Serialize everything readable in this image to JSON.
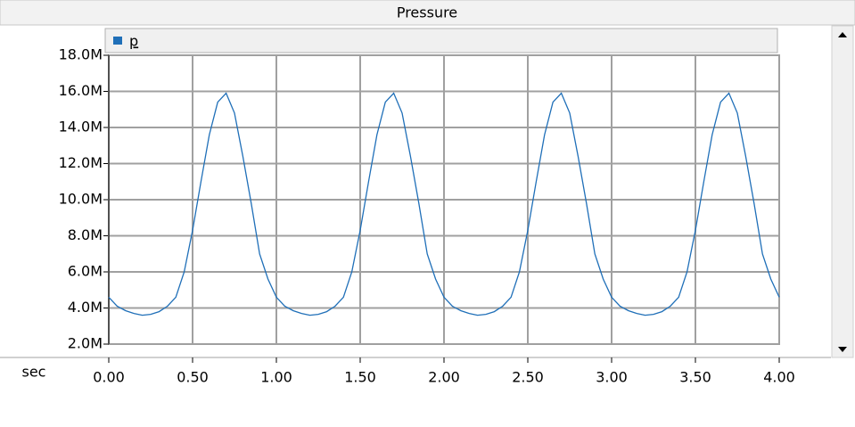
{
  "chart_data": {
    "type": "line",
    "title": "Pressure",
    "x_label": "sec",
    "x": [
      0,
      0.05,
      0.1,
      0.15,
      0.2,
      0.25,
      0.3,
      0.35,
      0.4,
      0.45,
      0.5,
      0.55,
      0.6,
      0.65,
      0.7,
      0.75,
      0.8,
      0.85,
      0.9,
      0.95,
      1,
      1.05,
      1.1,
      1.15,
      1.2,
      1.25,
      1.3,
      1.35,
      1.4,
      1.45,
      1.5,
      1.55,
      1.6,
      1.65,
      1.7,
      1.75,
      1.8,
      1.85,
      1.9,
      1.95,
      2,
      2.05,
      2.1,
      2.15,
      2.2,
      2.25,
      2.3,
      2.35,
      2.4,
      2.45,
      2.5,
      2.55,
      2.6,
      2.65,
      2.7,
      2.75,
      2.8,
      2.85,
      2.9,
      2.95,
      3,
      3.05,
      3.1,
      3.15,
      3.2,
      3.25,
      3.3,
      3.35,
      3.4,
      3.45,
      3.5,
      3.55,
      3.6,
      3.65,
      3.7,
      3.75,
      3.8,
      3.85,
      3.9,
      3.95,
      4
    ],
    "series": [
      {
        "name": "p",
        "color": "#1f6fb8",
        "values": [
          4600000,
          4100000,
          3850000,
          3700000,
          3600000,
          3650000,
          3800000,
          4100000,
          4600000,
          6000000,
          8300000,
          11000000,
          13600000,
          15400000,
          15900000,
          14800000,
          12400000,
          9800000,
          7000000,
          5600000,
          4600000,
          4100000,
          3850000,
          3700000,
          3600000,
          3650000,
          3800000,
          4100000,
          4600000,
          6000000,
          8300000,
          11000000,
          13600000,
          15400000,
          15900000,
          14800000,
          12400000,
          9800000,
          7000000,
          5600000,
          4600000,
          4100000,
          3850000,
          3700000,
          3600000,
          3650000,
          3800000,
          4100000,
          4600000,
          6000000,
          8300000,
          11000000,
          13600000,
          15400000,
          15900000,
          14800000,
          12400000,
          9800000,
          7000000,
          5600000,
          4600000,
          4100000,
          3850000,
          3700000,
          3600000,
          3650000,
          3800000,
          4100000,
          4600000,
          6000000,
          8300000,
          11000000,
          13600000,
          15400000,
          15900000,
          14800000,
          12400000,
          9800000,
          7000000,
          5600000,
          4600000
        ]
      }
    ],
    "xlim": [
      0,
      4
    ],
    "xticks": [
      {
        "value": 0,
        "label": "0.00"
      },
      {
        "value": 0.5,
        "label": "0.50"
      },
      {
        "value": 1,
        "label": "1.00"
      },
      {
        "value": 1.5,
        "label": "1.50"
      },
      {
        "value": 2,
        "label": "2.00"
      },
      {
        "value": 2.5,
        "label": "2.50"
      },
      {
        "value": 3,
        "label": "3.00"
      },
      {
        "value": 3.5,
        "label": "3.50"
      },
      {
        "value": 4,
        "label": "4.00"
      }
    ],
    "ylim": [
      2000000,
      18000000
    ],
    "yticks": [
      {
        "value": 2000000,
        "label": "2.0M"
      },
      {
        "value": 4000000,
        "label": "4.0M"
      },
      {
        "value": 6000000,
        "label": "6.0M"
      },
      {
        "value": 8000000,
        "label": "8.0M"
      },
      {
        "value": 10000000,
        "label": "10.0M"
      },
      {
        "value": 12000000,
        "label": "12.0M"
      },
      {
        "value": 14000000,
        "label": "14.0M"
      },
      {
        "value": 16000000,
        "label": "16.0M"
      },
      {
        "value": 18000000,
        "label": "18.0M"
      }
    ],
    "grid": true
  }
}
